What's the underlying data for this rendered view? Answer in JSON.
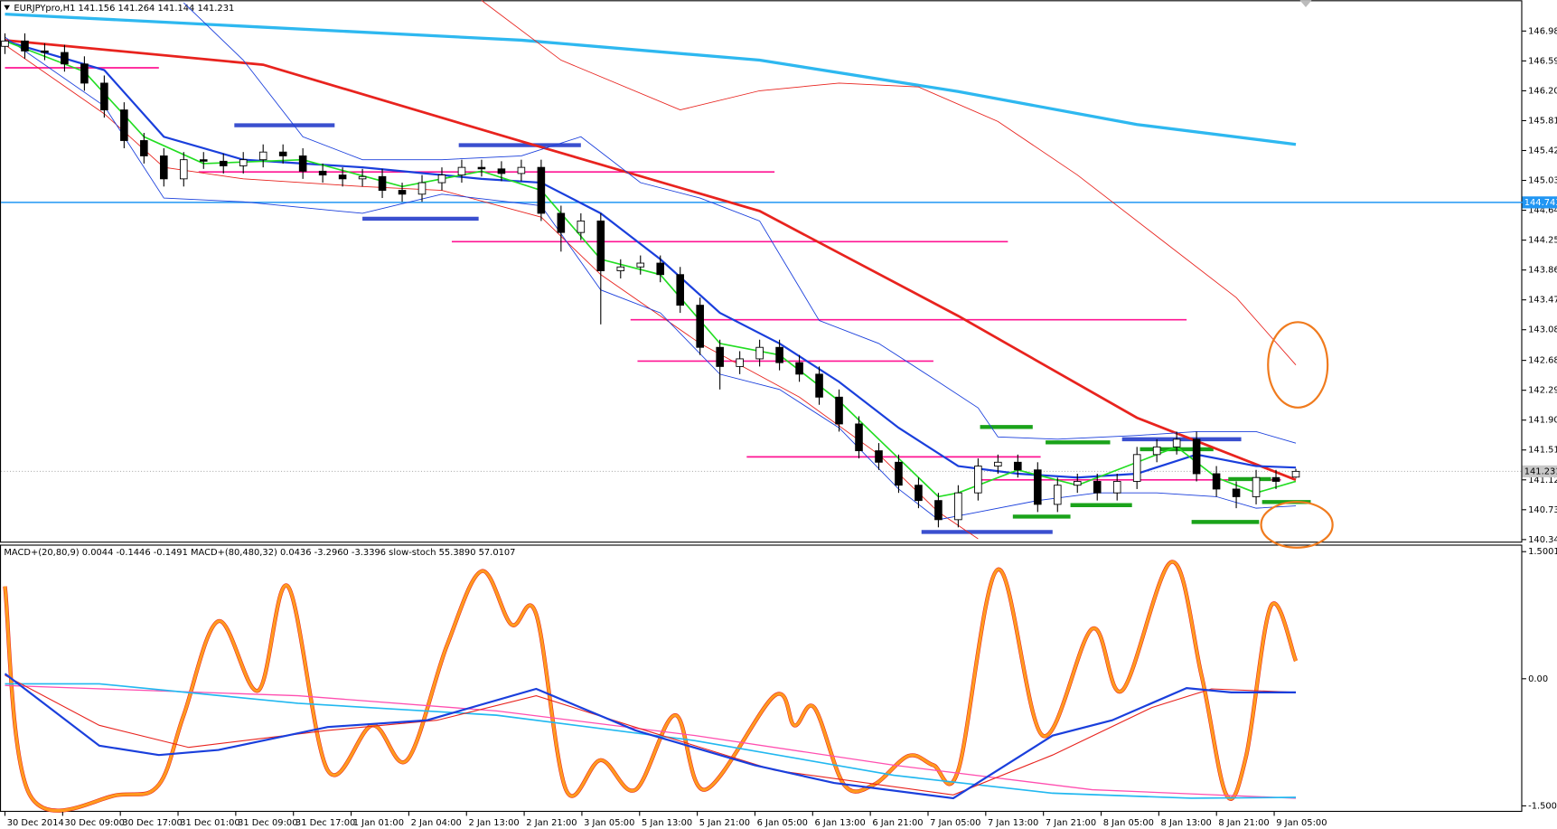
{
  "chart_data": [
    {
      "type": "candlestick",
      "title": "EURJPYpro,H1  141.156 141.264 141.144 141.231",
      "categories": [
        "30 Dec 2014",
        "30 Dec 09:00",
        "30 Dec 17:00",
        "31 Dec 01:00",
        "31 Dec 09:00",
        "31 Dec 17:00",
        "1 Jan 01:00",
        "2 Jan 04:00",
        "2 Jan 13:00",
        "2 Jan 21:00",
        "3 Jan 05:00",
        "5 Jan 13:00",
        "5 Jan 21:00",
        "6 Jan 05:00",
        "6 Jan 13:00",
        "6 Jan 21:00",
        "7 Jan 05:00",
        "7 Jan 13:00",
        "7 Jan 21:00",
        "8 Jan 05:00",
        "8 Jan 13:00",
        "8 Jan 21:00",
        "9 Jan 05:00"
      ],
      "open": [
        146.78,
        146.85,
        146.72,
        146.7,
        146.55,
        146.3,
        145.95,
        145.55,
        145.35,
        145.05,
        145.3,
        145.28,
        145.22,
        145.3,
        145.4,
        145.35,
        145.15,
        145.1,
        145.05,
        145.08,
        144.9,
        144.85,
        145.0,
        145.1,
        145.2,
        145.18,
        145.12,
        145.2,
        144.6,
        144.35,
        144.5,
        143.85,
        143.9,
        143.95,
        143.8,
        143.4,
        142.85,
        142.6,
        142.7,
        142.85,
        142.65,
        142.5,
        142.2,
        141.85,
        141.5,
        141.35,
        141.05,
        140.85,
        140.6,
        140.95,
        141.3,
        141.35,
        141.25,
        140.8,
        141.05,
        141.1,
        140.95,
        141.1,
        141.45,
        141.55,
        141.65,
        141.2,
        141.0,
        140.9,
        141.15,
        141.156
      ],
      "high": [
        146.95,
        146.95,
        146.82,
        146.8,
        146.65,
        146.4,
        146.05,
        145.65,
        145.45,
        145.4,
        145.4,
        145.38,
        145.4,
        145.5,
        145.5,
        145.45,
        145.25,
        145.2,
        145.18,
        145.18,
        145.0,
        145.1,
        145.2,
        145.3,
        145.3,
        145.28,
        145.3,
        145.3,
        144.7,
        144.6,
        144.6,
        144.0,
        144.05,
        144.05,
        143.9,
        143.5,
        142.95,
        142.8,
        142.95,
        142.95,
        142.75,
        142.6,
        142.3,
        141.95,
        141.6,
        141.45,
        141.15,
        140.95,
        141.05,
        141.4,
        141.45,
        141.45,
        141.35,
        141.15,
        141.2,
        141.2,
        141.2,
        141.55,
        141.65,
        141.75,
        141.75,
        141.3,
        141.1,
        141.25,
        141.25,
        141.264
      ],
      "low": [
        146.68,
        146.62,
        146.6,
        146.45,
        146.2,
        145.85,
        145.45,
        145.25,
        144.95,
        144.95,
        145.18,
        145.12,
        145.12,
        145.2,
        145.25,
        145.05,
        145.0,
        144.95,
        144.95,
        144.8,
        144.75,
        144.75,
        144.9,
        145.0,
        145.08,
        145.02,
        145.02,
        144.5,
        144.1,
        144.25,
        143.15,
        143.75,
        143.8,
        143.7,
        143.3,
        142.75,
        142.3,
        142.5,
        142.6,
        142.55,
        142.4,
        142.1,
        141.75,
        141.4,
        141.25,
        140.95,
        140.75,
        140.5,
        140.5,
        140.85,
        141.2,
        141.15,
        140.7,
        140.7,
        140.95,
        140.85,
        140.85,
        141.0,
        141.35,
        141.45,
        141.1,
        140.9,
        140.75,
        140.8,
        141.0,
        141.144
      ],
      "close": [
        146.85,
        146.72,
        146.7,
        146.55,
        146.3,
        145.95,
        145.55,
        145.35,
        145.05,
        145.3,
        145.28,
        145.22,
        145.3,
        145.4,
        145.35,
        145.15,
        145.1,
        145.05,
        145.08,
        144.9,
        144.85,
        145.0,
        145.1,
        145.2,
        145.18,
        145.12,
        145.2,
        144.6,
        144.35,
        144.5,
        143.85,
        143.9,
        143.95,
        143.8,
        143.4,
        142.85,
        142.6,
        142.7,
        142.85,
        142.65,
        142.5,
        142.2,
        141.85,
        141.5,
        141.35,
        141.05,
        140.85,
        140.6,
        140.95,
        141.3,
        141.35,
        141.25,
        140.8,
        141.05,
        141.1,
        140.95,
        141.1,
        141.45,
        141.55,
        141.65,
        141.2,
        141.0,
        140.9,
        141.15,
        141.1,
        141.231
      ],
      "ylim": [
        140.313,
        147.382
      ],
      "yticks": [
        {
          "value": 146.98,
          "label": "146.980"
        },
        {
          "value": 146.59,
          "label": "146.590"
        },
        {
          "value": 146.2,
          "label": "146.200"
        },
        {
          "value": 145.81,
          "label": "145.810"
        },
        {
          "value": 145.42,
          "label": "145.420"
        },
        {
          "value": 145.03,
          "label": "145.030"
        },
        {
          "value": 144.64,
          "label": "144.640"
        },
        {
          "value": 144.25,
          "label": "144.250"
        },
        {
          "value": 143.86,
          "label": "143.860"
        },
        {
          "value": 143.47,
          "label": "143.470"
        },
        {
          "value": 143.08,
          "label": "143.080"
        },
        {
          "value": 142.68,
          "label": "142.680"
        },
        {
          "value": 142.29,
          "label": "142.290"
        },
        {
          "value": 141.9,
          "label": "141.900"
        },
        {
          "value": 141.51,
          "label": "141.510"
        },
        {
          "value": 141.12,
          "label": "141.120"
        },
        {
          "value": 140.73,
          "label": "140.730"
        },
        {
          "value": 140.34,
          "label": "140.340"
        }
      ],
      "overlays": [
        {
          "color": "#2eb8f0",
          "width": 3,
          "x": [
            0,
            13,
            26,
            38,
            48,
            57,
            65
          ],
          "values": [
            147.2,
            147.03,
            146.86,
            146.6,
            146.19,
            145.76,
            145.5
          ]
        },
        {
          "color": "#e8231e",
          "width": 2.5,
          "x": [
            0,
            13,
            26,
            38,
            48,
            57,
            65
          ],
          "values": [
            146.86,
            146.54,
            145.54,
            144.63,
            143.26,
            141.93,
            141.12
          ]
        },
        {
          "color": "#e8231e",
          "width": 0.8,
          "x": [
            24,
            28,
            34,
            38,
            42,
            46,
            50,
            54,
            58,
            62,
            65
          ],
          "values": [
            147.38,
            146.6,
            145.95,
            146.2,
            146.3,
            146.25,
            145.8,
            145.1,
            144.3,
            143.5,
            142.62
          ]
        },
        {
          "color": "#e8231e",
          "width": 0.8,
          "x": [
            0,
            5,
            8,
            12,
            18,
            22,
            27,
            30,
            35,
            40,
            44,
            47,
            49
          ],
          "values": [
            146.8,
            145.9,
            145.2,
            145.05,
            144.95,
            144.9,
            144.55,
            143.8,
            142.9,
            142.2,
            141.45,
            140.7,
            140.35
          ]
        },
        {
          "color": "#1a3fdc",
          "width": 0.8,
          "x": [
            9,
            12,
            15,
            18,
            22,
            26,
            29,
            32,
            35,
            38,
            41,
            44,
            47,
            49,
            50,
            53,
            57,
            60,
            63,
            65
          ],
          "values": [
            147.35,
            146.6,
            145.6,
            145.3,
            145.3,
            145.35,
            145.6,
            145.0,
            144.8,
            144.5,
            143.2,
            142.9,
            142.4,
            142.06,
            141.68,
            141.65,
            141.7,
            141.75,
            141.75,
            141.6
          ]
        },
        {
          "color": "#1a3fdc",
          "width": 0.8,
          "x": [
            0,
            5,
            8,
            12,
            18,
            22,
            27,
            30,
            33,
            36,
            39,
            42,
            45,
            47,
            49,
            52,
            55,
            58,
            61,
            63,
            65
          ],
          "values": [
            146.9,
            146.0,
            144.8,
            144.75,
            144.6,
            144.85,
            144.7,
            143.6,
            143.3,
            142.5,
            142.3,
            141.8,
            141.0,
            140.6,
            140.7,
            140.85,
            140.95,
            140.95,
            140.9,
            140.75,
            140.78
          ]
        },
        {
          "color": "#1a3fdc",
          "width": 2,
          "x": [
            0,
            5,
            8,
            12,
            18,
            24,
            27,
            30,
            33,
            36,
            39,
            42,
            45,
            48,
            51,
            54,
            57,
            60,
            63,
            65
          ],
          "values": [
            146.85,
            146.47,
            145.6,
            145.3,
            145.2,
            145.05,
            145.0,
            144.6,
            144.0,
            143.3,
            142.9,
            142.4,
            141.8,
            141.3,
            141.2,
            141.15,
            141.2,
            141.45,
            141.3,
            141.28
          ]
        },
        {
          "color": "#22dd22",
          "width": 1.5,
          "x": [
            0,
            4,
            7,
            10,
            15,
            20,
            24,
            27,
            30,
            33,
            36,
            39,
            42,
            45,
            47,
            48,
            51,
            54,
            57,
            59,
            61,
            63,
            65
          ],
          "values": [
            146.85,
            146.45,
            145.6,
            145.25,
            145.3,
            144.95,
            145.15,
            144.9,
            144.0,
            143.8,
            142.9,
            142.75,
            142.15,
            141.4,
            140.9,
            140.95,
            141.25,
            141.05,
            141.35,
            141.55,
            141.15,
            140.95,
            141.1
          ]
        }
      ],
      "levels": [
        {
          "color": "#ff1493",
          "x": [
            0,
            7.75
          ],
          "value": 146.5
        },
        {
          "color": "#ff1493",
          "x": [
            9.75,
            38.75
          ],
          "value": 145.14
        },
        {
          "color": "#ff1493",
          "x": [
            22.5,
            50.5
          ],
          "value": 144.23
        },
        {
          "color": "#ff1493",
          "x": [
            31.5,
            59.5
          ],
          "value": 143.21
        },
        {
          "color": "#ff1493",
          "x": [
            31.85,
            46.75
          ],
          "value": 142.67
        },
        {
          "color": "#ff1493",
          "x": [
            37.35,
            52.15
          ],
          "value": 141.42
        },
        {
          "color": "#ff1493",
          "x": [
            49,
            64.25
          ],
          "value": 141.12
        },
        {
          "color": "#3a4fcf",
          "x": [
            11.55,
            16.6
          ],
          "value": 145.75
        },
        {
          "color": "#3a4fcf",
          "x": [
            22.85,
            29
          ],
          "value": 145.49
        },
        {
          "color": "#3a4fcf",
          "x": [
            18,
            23.85
          ],
          "value": 144.53
        },
        {
          "color": "#3a4fcf",
          "x": [
            56.25,
            62.25
          ],
          "value": 141.65
        },
        {
          "color": "#3a4fcf",
          "x": [
            46.15,
            52.75
          ],
          "value": 140.44
        },
        {
          "color": "#1aa31a",
          "x": [
            49.1,
            51.75
          ],
          "value": 141.81
        },
        {
          "color": "#1aa31a",
          "x": [
            52.4,
            55.65
          ],
          "value": 141.61
        },
        {
          "color": "#1aa31a",
          "x": [
            57.15,
            60.85
          ],
          "value": 141.52
        },
        {
          "color": "#1aa31a",
          "x": [
            61.6,
            63.75
          ],
          "value": 141.13
        },
        {
          "color": "#1aa31a",
          "x": [
            63.3,
            65.75
          ],
          "value": 140.83
        },
        {
          "color": "#1aa31a",
          "x": [
            50.75,
            53.65
          ],
          "value": 140.64
        },
        {
          "color": "#1aa31a",
          "x": [
            53.65,
            56.75
          ],
          "value": 140.79
        },
        {
          "color": "#1aa31a",
          "x": [
            59.75,
            63.15
          ],
          "value": 140.57
        }
      ],
      "support_line": 144.743,
      "current_price": 141.231
    },
    {
      "type": "line",
      "title": "MACD+(20,80,9) 0.0044 -0.1446 -0.1491  MACD+(80,480,32) 0.0436 -3.2960 -3.3396  slow-stoch 55.3890 57.0107",
      "ylim": [
        -1.571,
        1.583
      ],
      "yticks": [
        1.5001,
        {
          "value": 0,
          "label": "0.00"
        },
        -1.5001
      ],
      "series": [
        {
          "color": "#ff9a1e",
          "width": 3,
          "smooth": true,
          "x": [
            0,
            1.25,
            5.75,
            7.75,
            9,
            10.75,
            12.75,
            14.25,
            16.25,
            18.5,
            20.25,
            22.25,
            24,
            25.5,
            26.75,
            28.25,
            30,
            31.75,
            33.75,
            35.25,
            38.75,
            39.75,
            40.75,
            42.25,
            43.75,
            45.5,
            46.75,
            48,
            50,
            52.25,
            54.75,
            56.25,
            58.75,
            60.25,
            61.5,
            62.5,
            63.75,
            65
          ],
          "values": [
            1.09,
            -1.37,
            -1.37,
            -1.25,
            -0.43,
            0.68,
            -0.14,
            1.09,
            -1.08,
            -0.55,
            -0.96,
            0.39,
            1.27,
            0.64,
            0.76,
            -1.31,
            -0.96,
            -1.31,
            -0.43,
            -1.31,
            -0.2,
            -0.55,
            -0.34,
            -1.25,
            -1.25,
            -0.91,
            -1.02,
            -1.08,
            1.29,
            -0.67,
            0.59,
            -0.14,
            1.38,
            0.04,
            -1.37,
            -0.91,
            0.86,
            0.21
          ]
        },
        {
          "color": "#ff4fb0",
          "width": 1.2,
          "x": [
            0,
            14.75,
            24.75,
            34.75,
            44.75,
            54.75,
            65
          ],
          "values": [
            -0.08,
            -0.2,
            -0.38,
            -0.67,
            -1.02,
            -1.31,
            -1.41
          ]
        },
        {
          "color": "#22b8f0",
          "width": 1.5,
          "x": [
            0,
            4.75,
            14.75,
            24.75,
            34.75,
            44.75,
            52.75,
            59.75,
            65
          ],
          "values": [
            -0.06,
            -0.06,
            -0.29,
            -0.43,
            -0.73,
            -1.14,
            -1.35,
            -1.41,
            -1.4
          ]
        },
        {
          "color": "#e8231e",
          "width": 1,
          "x": [
            0,
            4.75,
            9.25,
            16.25,
            21.75,
            26.75,
            32.25,
            38.75,
            47.75,
            52.75,
            57.75,
            60.75,
            65
          ],
          "values": [
            0.04,
            -0.55,
            -0.81,
            -0.61,
            -0.49,
            -0.2,
            -0.61,
            -1.08,
            -1.37,
            -0.9,
            -0.34,
            -0.12,
            -0.16
          ]
        },
        {
          "color": "#1a3fdc",
          "width": 2,
          "x": [
            0,
            4.75,
            7.75,
            10.75,
            16.25,
            21.25,
            26.75,
            31.75,
            37.75,
            41.75,
            47.75,
            52.75,
            55.75,
            59.5,
            61.75,
            65
          ],
          "values": [
            0.06,
            -0.79,
            -0.9,
            -0.84,
            -0.57,
            -0.49,
            -0.12,
            -0.61,
            -1.02,
            -1.23,
            -1.41,
            -0.67,
            -0.49,
            -0.11,
            -0.16,
            -0.16
          ]
        }
      ]
    }
  ]
}
